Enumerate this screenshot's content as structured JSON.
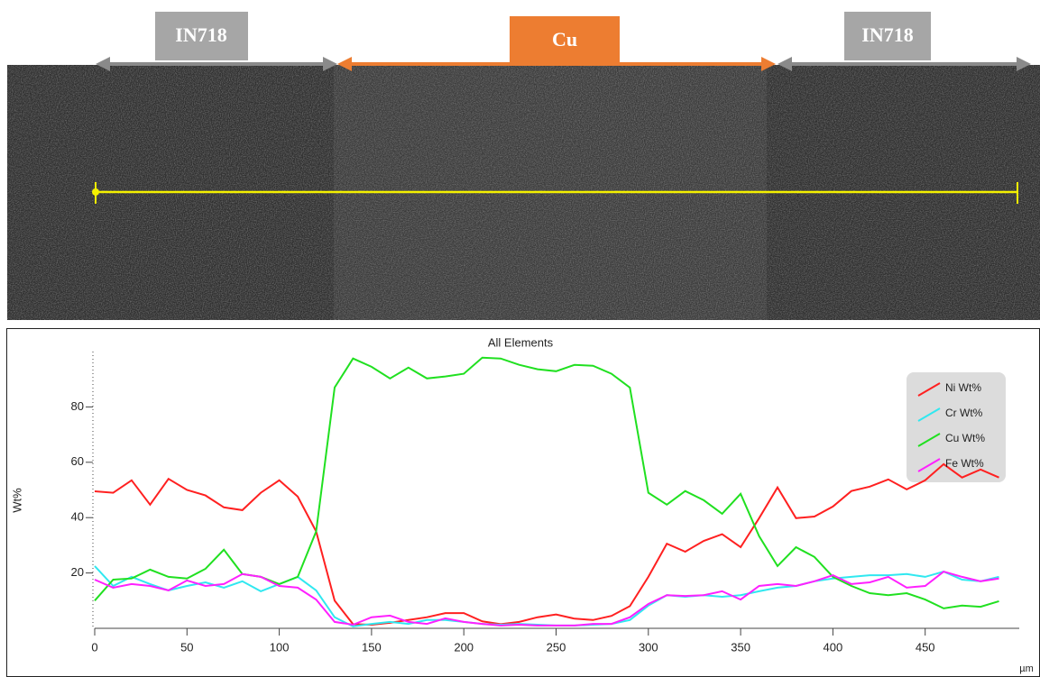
{
  "regions": [
    "IN718",
    "Cu",
    "IN718"
  ],
  "chart_data": {
    "type": "line",
    "title": "All Elements",
    "y_label": "Wt%",
    "x_label": "µm",
    "x": [
      0,
      10,
      20,
      30,
      40,
      50,
      60,
      70,
      80,
      90,
      100,
      110,
      120,
      130,
      140,
      150,
      160,
      170,
      180,
      190,
      200,
      210,
      220,
      230,
      240,
      250,
      260,
      270,
      280,
      290,
      300,
      310,
      320,
      330,
      340,
      350,
      360,
      370,
      380,
      390,
      400,
      410,
      420,
      430,
      440,
      450,
      460,
      470,
      480,
      490
    ],
    "series": [
      {
        "name": "Ni Wt%",
        "color": "#ff2020",
        "values": [
          49.5,
          49,
          53.5,
          44.7,
          54,
          50,
          48,
          43.7,
          42.7,
          49,
          53.5,
          47.6,
          35,
          10,
          1.5,
          1.3,
          2,
          3,
          4,
          5.5,
          5.5,
          2.5,
          1.5,
          2.3,
          4,
          5,
          3.5,
          3,
          4.5,
          8,
          18.6,
          30.6,
          27.7,
          31.6,
          34,
          29.3,
          39.8,
          50.9,
          39.8,
          40.4,
          44,
          49.6,
          51.2,
          53.8,
          50.2,
          53.5,
          59.3,
          54.5,
          57.4,
          54.5
        ]
      },
      {
        "name": "Cr Wt%",
        "color": "#30e8f0",
        "values": [
          22.5,
          15.3,
          18.6,
          16,
          13.7,
          15.3,
          16.6,
          14.7,
          17,
          13.4,
          16,
          18.6,
          13.7,
          4,
          0.7,
          1.6,
          2.3,
          1.6,
          3,
          3,
          2.3,
          1.6,
          1.3,
          1.6,
          1.3,
          1,
          1,
          1.3,
          1.6,
          3,
          8.2,
          12,
          11.4,
          12,
          11.4,
          12,
          13.4,
          14.7,
          15.3,
          17,
          18,
          18.6,
          19.2,
          19.2,
          19.6,
          18.6,
          20.5,
          17.6,
          17,
          18.6
        ]
      },
      {
        "name": "Cu Wt%",
        "color": "#20e020",
        "values": [
          10,
          17.6,
          18,
          21.2,
          18.6,
          18,
          21.5,
          28.4,
          19.6,
          18.6,
          16,
          18.6,
          35,
          87,
          97.5,
          94.5,
          90.3,
          94.2,
          90.3,
          91,
          92,
          97.8,
          97.5,
          95.2,
          93.6,
          92.9,
          95.2,
          94.9,
          92,
          87,
          49,
          44.7,
          49.6,
          46.3,
          41.4,
          48.6,
          33.3,
          22.5,
          29.3,
          25.8,
          18.6,
          15.3,
          12.7,
          12,
          12.7,
          10.4,
          7.2,
          8.2,
          7.8,
          9.8
        ]
      },
      {
        "name": "Fe Wt%",
        "color": "#ff20ff",
        "values": [
          17.6,
          14.7,
          16,
          15.3,
          13.7,
          17.3,
          15.3,
          16,
          19.6,
          18.6,
          15.3,
          14.7,
          10.4,
          2.3,
          1.3,
          4,
          4.6,
          2.3,
          1.6,
          3.6,
          2.3,
          1.6,
          1,
          1.3,
          1,
          1,
          1,
          1.6,
          1.6,
          4,
          8.8,
          12,
          11.7,
          12,
          13.4,
          10.4,
          15.3,
          16,
          15.3,
          17,
          19.2,
          16,
          16.6,
          18.6,
          14.7,
          15.3,
          20.5,
          18.6,
          17,
          18
        ]
      }
    ],
    "xlim": [
      0,
      500
    ],
    "ylim": [
      0,
      100
    ],
    "xticks": [
      0,
      50,
      100,
      150,
      200,
      250,
      300,
      350,
      400,
      450
    ],
    "yticks": [
      20,
      40,
      60,
      80
    ],
    "legend": "upper-right"
  }
}
